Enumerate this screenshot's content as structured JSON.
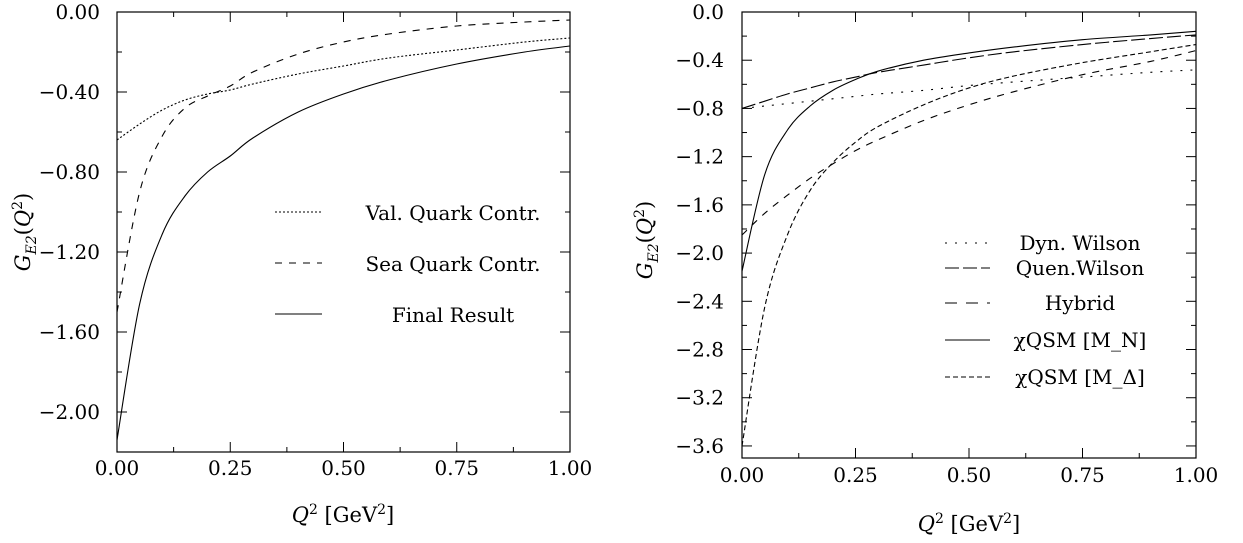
{
  "chart_data": [
    {
      "type": "line",
      "xlabel": "Q² [GeV²]",
      "ylabel": "G_E2(Q²)",
      "xlim": [
        0.0,
        1.0
      ],
      "ylim": [
        -2.2,
        0.0
      ],
      "x_ticks": [
        0.0,
        0.25,
        0.5,
        0.75,
        1.0
      ],
      "x_tick_labels": [
        "0.00",
        "0.25",
        "0.50",
        "0.75",
        "1.00"
      ],
      "y_ticks": [
        0.0,
        -0.4,
        -0.8,
        -1.2,
        -1.6,
        -2.0
      ],
      "y_tick_labels": [
        "0.00",
        "−0.40",
        "−0.80",
        "−1.20",
        "−1.60",
        "−2.00"
      ],
      "legend_position": "center-right",
      "x": [
        0.0,
        0.05,
        0.1,
        0.15,
        0.2,
        0.25,
        0.3,
        0.4,
        0.5,
        0.6,
        0.75,
        0.9,
        1.0
      ],
      "series": [
        {
          "name": "Val. Quark Contr.",
          "style": "dotted",
          "values": [
            -0.64,
            -0.56,
            -0.49,
            -0.44,
            -0.41,
            -0.39,
            -0.36,
            -0.31,
            -0.27,
            -0.23,
            -0.19,
            -0.15,
            -0.13
          ]
        },
        {
          "name": "Sea Quark Contr.",
          "style": "dashed",
          "values": [
            -1.5,
            -0.9,
            -0.62,
            -0.48,
            -0.42,
            -0.37,
            -0.3,
            -0.21,
            -0.15,
            -0.11,
            -0.07,
            -0.05,
            -0.04
          ]
        },
        {
          "name": "Final Result",
          "style": "solid",
          "values": [
            -2.14,
            -1.46,
            -1.11,
            -0.92,
            -0.8,
            -0.72,
            -0.63,
            -0.5,
            -0.41,
            -0.34,
            -0.26,
            -0.2,
            -0.17
          ]
        }
      ]
    },
    {
      "type": "line",
      "xlabel": "Q² [GeV²]",
      "ylabel": "G_E2(Q²)",
      "xlim": [
        0.0,
        1.0
      ],
      "ylim": [
        -3.7,
        0.0
      ],
      "x_ticks": [
        0.0,
        0.25,
        0.5,
        0.75,
        1.0
      ],
      "x_tick_labels": [
        "0.00",
        "0.25",
        "0.50",
        "0.75",
        "1.00"
      ],
      "y_ticks": [
        0.0,
        -0.4,
        -0.8,
        -1.2,
        -1.6,
        -2.0,
        -2.4,
        -2.8,
        -3.2,
        -3.6
      ],
      "y_tick_labels": [
        "0.0",
        "−0.4",
        "−0.8",
        "−1.2",
        "−1.6",
        "−2.0",
        "−2.4",
        "−2.8",
        "−3.2",
        "−3.6"
      ],
      "legend_position": "center-right",
      "x": [
        0.0,
        0.05,
        0.1,
        0.15,
        0.2,
        0.25,
        0.3,
        0.4,
        0.5,
        0.6,
        0.75,
        0.9,
        1.0
      ],
      "series": [
        {
          "name": "Dyn. Wilson",
          "style": "dotted-sparse",
          "values": [
            -0.8,
            -0.78,
            -0.76,
            -0.74,
            -0.72,
            -0.7,
            -0.68,
            -0.65,
            -0.61,
            -0.58,
            -0.54,
            -0.5,
            -0.48
          ]
        },
        {
          "name": "Quen.Wilson",
          "style": "long-dash",
          "values": [
            -0.8,
            -0.74,
            -0.68,
            -0.63,
            -0.58,
            -0.54,
            -0.5,
            -0.44,
            -0.38,
            -0.33,
            -0.27,
            -0.22,
            -0.19
          ]
        },
        {
          "name": "Hybrid",
          "style": "dashed",
          "values": [
            -1.85,
            -1.67,
            -1.52,
            -1.38,
            -1.26,
            -1.15,
            -1.06,
            -0.9,
            -0.77,
            -0.66,
            -0.52,
            -0.41,
            -0.32
          ]
        },
        {
          "name": "χQSM [M_N]",
          "style": "solid",
          "values": [
            -2.15,
            -1.35,
            -0.98,
            -0.78,
            -0.65,
            -0.56,
            -0.49,
            -0.4,
            -0.34,
            -0.29,
            -0.23,
            -0.19,
            -0.16
          ]
        },
        {
          "name": "χQSM [M_Δ]",
          "style": "short-dash",
          "values": [
            -3.6,
            -2.45,
            -1.85,
            -1.48,
            -1.25,
            -1.08,
            -0.95,
            -0.77,
            -0.63,
            -0.53,
            -0.42,
            -0.33,
            -0.27
          ]
        }
      ]
    }
  ]
}
